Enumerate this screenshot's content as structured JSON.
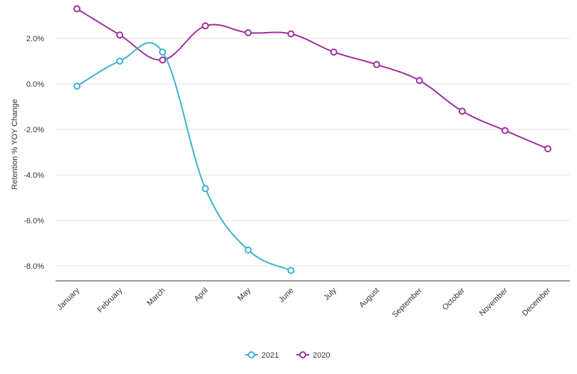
{
  "chart_data": {
    "type": "line",
    "title": "",
    "xlabel": "",
    "ylabel": "Retention % YOY Change",
    "ylim": [
      -8.8,
      3.4
    ],
    "y_ticks": [
      {
        "value": 2.0,
        "label": "2.0%"
      },
      {
        "value": 0.0,
        "label": "0.0%"
      },
      {
        "value": -2.0,
        "label": "-2.0%"
      },
      {
        "value": -4.0,
        "label": "-4.0%"
      },
      {
        "value": -6.0,
        "label": "-6.0%"
      },
      {
        "value": -8.0,
        "label": "-8.0%"
      }
    ],
    "categories": [
      "January",
      "February",
      "March",
      "April",
      "May",
      "June",
      "July",
      "August",
      "September",
      "October",
      "November",
      "December"
    ],
    "grid": true,
    "legend_position": "bottom-center",
    "series": [
      {
        "name": "2021",
        "color": "#3db1d0",
        "values": [
          -0.1,
          1.0,
          1.4,
          -4.6,
          -7.3,
          -8.2,
          null,
          null,
          null,
          null,
          null,
          null
        ]
      },
      {
        "name": "2020",
        "color": "#a0309c",
        "values": [
          3.3,
          2.15,
          1.05,
          2.55,
          2.25,
          2.2,
          1.4,
          0.85,
          0.15,
          -1.2,
          -2.05,
          -2.85
        ]
      }
    ]
  }
}
